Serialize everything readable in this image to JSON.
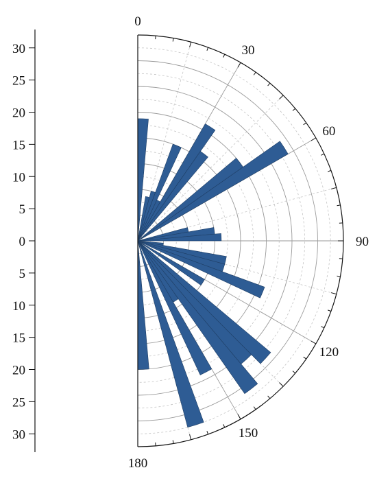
{
  "chart_data": {
    "type": "bar",
    "subtype": "polar-semicircle-rose",
    "angle_unit": "degrees",
    "angle_range": [
      0,
      180
    ],
    "angle_labels": [
      {
        "angle": 0,
        "label": "0"
      },
      {
        "angle": 30,
        "label": "30"
      },
      {
        "angle": 60,
        "label": "60"
      },
      {
        "angle": 90,
        "label": "90"
      },
      {
        "angle": 120,
        "label": "120"
      },
      {
        "angle": 150,
        "label": "150"
      },
      {
        "angle": 180,
        "label": "180"
      }
    ],
    "radial_range": [
      0,
      32
    ],
    "radial_ticks": [
      30,
      25,
      20,
      15,
      10,
      5,
      0,
      5,
      10,
      15,
      20,
      25,
      30
    ],
    "grid": true,
    "bar_width_deg": 5,
    "bar_color": "#2e5c94",
    "bars": [
      {
        "angle": 2.5,
        "value": 19
      },
      {
        "angle": 12.5,
        "value": 7
      },
      {
        "angle": 17.5,
        "value": 8
      },
      {
        "angle": 22.5,
        "value": 16
      },
      {
        "angle": 27.5,
        "value": 7
      },
      {
        "angle": 32.5,
        "value": 21
      },
      {
        "angle": 37.5,
        "value": 17
      },
      {
        "angle": 52.5,
        "value": 20
      },
      {
        "angle": 57.5,
        "value": 27
      },
      {
        "angle": 77.5,
        "value": 8
      },
      {
        "angle": 82.5,
        "value": 12
      },
      {
        "angle": 87.5,
        "value": 13
      },
      {
        "angle": 97.5,
        "value": 4
      },
      {
        "angle": 102.5,
        "value": 14
      },
      {
        "angle": 107.5,
        "value": 14
      },
      {
        "angle": 112.5,
        "value": 21
      },
      {
        "angle": 122.5,
        "value": 12
      },
      {
        "angle": 132.5,
        "value": 27
      },
      {
        "angle": 137.5,
        "value": 25
      },
      {
        "angle": 142.5,
        "value": 29
      },
      {
        "angle": 147.5,
        "value": 11
      },
      {
        "angle": 152.5,
        "value": 23
      },
      {
        "angle": 162.5,
        "value": 30
      },
      {
        "angle": 177.5,
        "value": 20
      }
    ]
  }
}
